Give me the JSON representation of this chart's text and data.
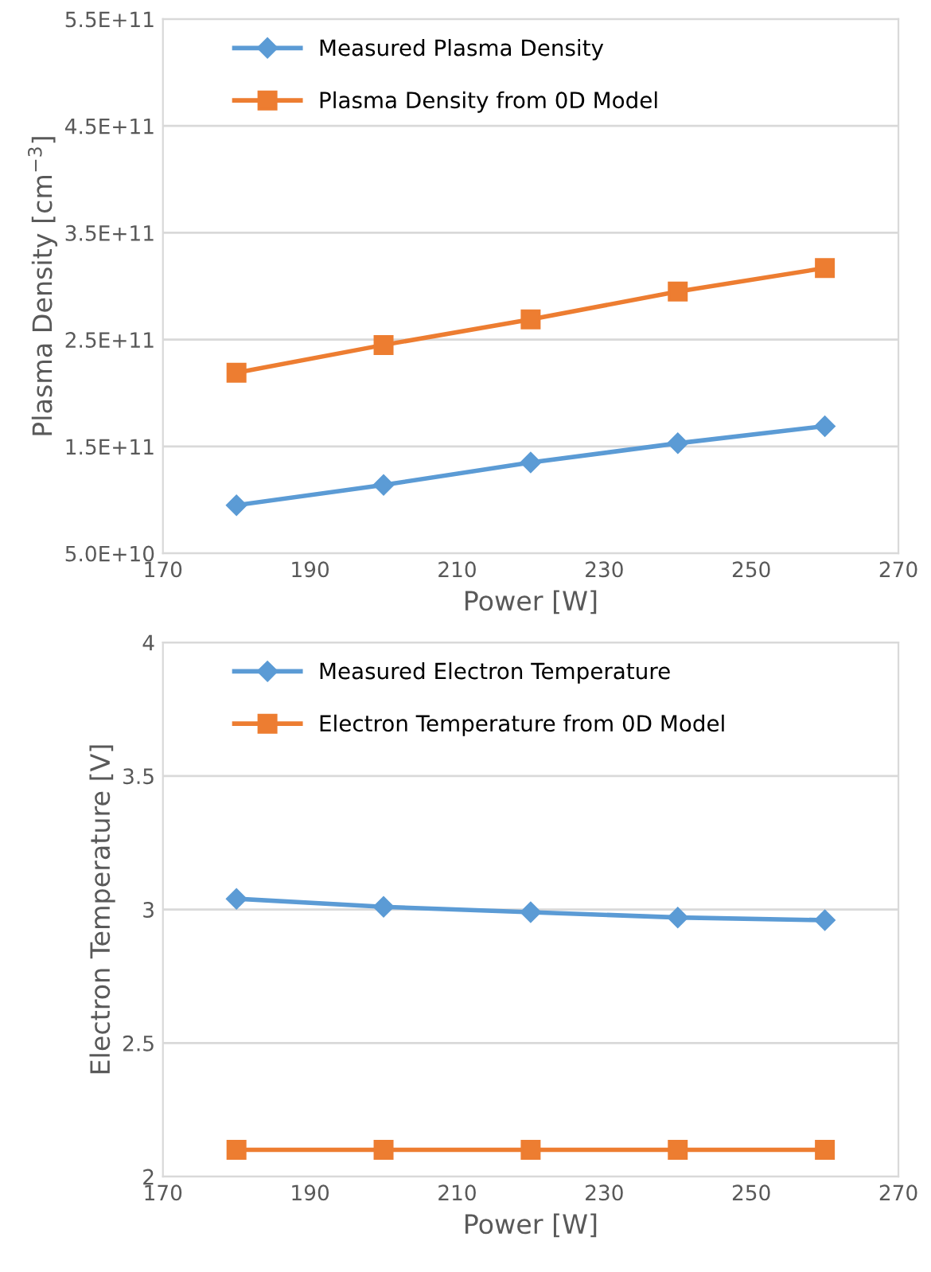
{
  "chart_data": [
    {
      "type": "line",
      "xlabel": "Power [W]",
      "ylabel": "Plasma Density [cm$^{−3}$]",
      "x": [
        180,
        200,
        220,
        240,
        260
      ],
      "series": [
        {
          "name": "Measured Plasma Density",
          "color": "#5b9bd5",
          "marker": "diamond",
          "values": [
            95000000000.0,
            114000000000.0,
            135000000000.0,
            153000000000.0,
            169000000000.0
          ]
        },
        {
          "name": "Plasma Density from 0D Model",
          "color": "#ed7d31",
          "marker": "square",
          "values": [
            219000000000.0,
            245000000000.0,
            269000000000.0,
            295000000000.0,
            317000000000.0
          ]
        }
      ],
      "xlim": [
        170,
        270
      ],
      "xticks": [
        170,
        190,
        210,
        230,
        250,
        270
      ],
      "ylim": [
        50000000000.0,
        550000000000.0
      ],
      "yticks": [
        {
          "value": 50000000000.0,
          "label": "5.0E+10"
        },
        {
          "value": 150000000000.0,
          "label": "1.5E+11"
        },
        {
          "value": 250000000000.0,
          "label": "2.5E+11"
        },
        {
          "value": 350000000000.0,
          "label": "3.5E+11"
        },
        {
          "value": 450000000000.0,
          "label": "4.5E+11"
        },
        {
          "value": 550000000000.0,
          "label": "5.5E+11"
        }
      ],
      "grid": "y",
      "legend": "top left",
      "line_style": "solid"
    },
    {
      "type": "line",
      "xlabel": "Power [W]",
      "ylabel": "Electron Temperature [V]",
      "x": [
        180,
        200,
        220,
        240,
        260
      ],
      "series": [
        {
          "name": "Measured Electron Temperature",
          "color": "#5b9bd5",
          "marker": "diamond",
          "values": [
            3.04,
            3.01,
            2.99,
            2.97,
            2.96
          ]
        },
        {
          "name": "Electron Temperature from 0D Model",
          "color": "#ed7d31",
          "marker": "square",
          "values": [
            2.1,
            2.1,
            2.1,
            2.1,
            2.1
          ]
        }
      ],
      "xlim": [
        170,
        270
      ],
      "xticks": [
        170,
        190,
        210,
        230,
        250,
        270
      ],
      "ylim": [
        2,
        4
      ],
      "yticks": [
        2,
        2.5,
        3,
        3.5,
        4
      ],
      "grid": "y",
      "legend": "top left",
      "line_style": "solid"
    }
  ]
}
